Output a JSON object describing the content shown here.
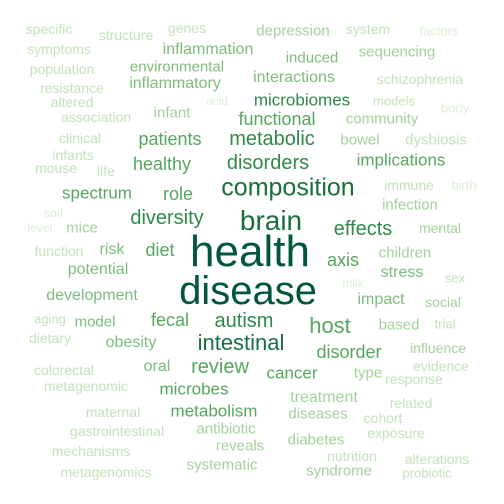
{
  "palette": {
    "darkest": "#00573a",
    "dark": "#19703f",
    "medium_dark": "#2f8a4a",
    "medium": "#56a65d",
    "medium_light": "#7cbd79",
    "light": "#a2d29a",
    "lighter": "#c3e2ba",
    "faint": "#dcefd6"
  },
  "words": [
    {
      "text": "health"
    },
    {
      "text": "disease"
    },
    {
      "text": "brain"
    },
    {
      "text": "composition"
    },
    {
      "text": "metabolic"
    },
    {
      "text": "disorders"
    },
    {
      "text": "intestinal"
    },
    {
      "text": "autism"
    },
    {
      "text": "diversity"
    },
    {
      "text": "effects"
    },
    {
      "text": "host"
    },
    {
      "text": "microbiomes"
    },
    {
      "text": "functional"
    },
    {
      "text": "patients"
    },
    {
      "text": "healthy"
    },
    {
      "text": "implications"
    },
    {
      "text": "review"
    },
    {
      "text": "disorder"
    },
    {
      "text": "role"
    },
    {
      "text": "spectrum"
    },
    {
      "text": "diet"
    },
    {
      "text": "axis"
    },
    {
      "text": "fecal"
    },
    {
      "text": "cancer"
    },
    {
      "text": "microbes"
    },
    {
      "text": "metabolism"
    },
    {
      "text": "stress"
    },
    {
      "text": "potential"
    },
    {
      "text": "development"
    },
    {
      "text": "impact"
    },
    {
      "text": "obesity"
    },
    {
      "text": "oral"
    },
    {
      "text": "model"
    },
    {
      "text": "risk"
    },
    {
      "text": "interactions"
    },
    {
      "text": "inflammation"
    },
    {
      "text": "inflammatory"
    },
    {
      "text": "environmental"
    },
    {
      "text": "induced"
    },
    {
      "text": "sequencing"
    },
    {
      "text": "depression"
    },
    {
      "text": "community"
    },
    {
      "text": "bowel"
    },
    {
      "text": "infant"
    },
    {
      "text": "children"
    },
    {
      "text": "treatment"
    },
    {
      "text": "diseases"
    },
    {
      "text": "antibiotic"
    },
    {
      "text": "reveals"
    },
    {
      "text": "diabetes"
    },
    {
      "text": "systematic"
    },
    {
      "text": "syndrome"
    },
    {
      "text": "based"
    },
    {
      "text": "social"
    },
    {
      "text": "infection"
    },
    {
      "text": "type"
    },
    {
      "text": "influence"
    },
    {
      "text": "mice"
    },
    {
      "text": "mental"
    },
    {
      "text": "immune"
    },
    {
      "text": "dysbiosis"
    },
    {
      "text": "schizophrenia"
    },
    {
      "text": "system"
    },
    {
      "text": "genes"
    },
    {
      "text": "structure"
    },
    {
      "text": "specific"
    },
    {
      "text": "symptoms"
    },
    {
      "text": "population"
    },
    {
      "text": "resistance"
    },
    {
      "text": "altered"
    },
    {
      "text": "association"
    },
    {
      "text": "clinical"
    },
    {
      "text": "infants"
    },
    {
      "text": "mouse"
    },
    {
      "text": "life"
    },
    {
      "text": "soil"
    },
    {
      "text": "function"
    },
    {
      "text": "aging"
    },
    {
      "text": "dietary"
    },
    {
      "text": "colorectal"
    },
    {
      "text": "metagenomic"
    },
    {
      "text": "maternal"
    },
    {
      "text": "gastrointestinal"
    },
    {
      "text": "mechanisms"
    },
    {
      "text": "metagenomics"
    },
    {
      "text": "nutrition"
    },
    {
      "text": "alterations"
    },
    {
      "text": "probiotic"
    },
    {
      "text": "exposure"
    },
    {
      "text": "cohort"
    },
    {
      "text": "related"
    },
    {
      "text": "response"
    },
    {
      "text": "evidence"
    },
    {
      "text": "trial"
    },
    {
      "text": "sex"
    },
    {
      "text": "milk"
    },
    {
      "text": "models"
    },
    {
      "text": "body"
    },
    {
      "text": "factors"
    },
    {
      "text": "birth"
    },
    {
      "text": "acid"
    },
    {
      "text": "level"
    }
  ]
}
